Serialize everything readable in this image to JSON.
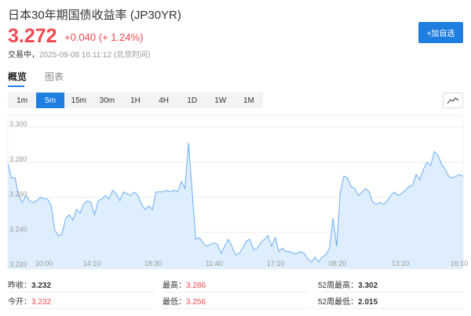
{
  "header": {
    "title": "日本30年期国债收益率 (JP30YR)",
    "price": "3.272",
    "change": "+0.040 (+ 1.24%)",
    "status_label": "交易中，",
    "timestamp": "2025-09-08 16:11:12 (北京时间)",
    "add_button": "+加自选"
  },
  "tabs": [
    {
      "label": "概览",
      "active": true
    },
    {
      "label": "图表",
      "active": false
    }
  ],
  "timeframes": [
    "1m",
    "5m",
    "15m",
    "30m",
    "1H",
    "4H",
    "1D",
    "1W",
    "1M"
  ],
  "active_timeframe": "5m",
  "colors": {
    "accent": "#1f7fe0",
    "up": "#f0484f",
    "line": "#6aaef5",
    "fill": "#dfeefc"
  },
  "chart_data": {
    "type": "area",
    "y_ticks": [
      "3.300",
      "3.280",
      "3.260",
      "3.240",
      "3.220"
    ],
    "ylim": [
      3.22,
      3.3
    ],
    "x_ticks": [
      "10:00",
      "14:10",
      "18:30",
      "11:40",
      "17:10",
      "08:20",
      "13:10",
      "16:10"
    ],
    "grid": true,
    "values": [
      3.279,
      3.271,
      3.271,
      3.261,
      3.257,
      3.261,
      3.258,
      3.257,
      3.258,
      3.26,
      3.259,
      3.259,
      3.255,
      3.241,
      3.238,
      3.239,
      3.248,
      3.25,
      3.247,
      3.253,
      3.251,
      3.256,
      3.258,
      3.257,
      3.25,
      3.258,
      3.259,
      3.261,
      3.259,
      3.264,
      3.262,
      3.258,
      3.263,
      3.262,
      3.261,
      3.263,
      3.261,
      3.256,
      3.253,
      3.255,
      3.253,
      3.263,
      3.263,
      3.263,
      3.264,
      3.263,
      3.264,
      3.263,
      3.269,
      3.265,
      3.291,
      3.263,
      3.236,
      3.237,
      3.234,
      3.232,
      3.233,
      3.234,
      3.233,
      3.228,
      3.232,
      3.236,
      3.232,
      3.227,
      3.228,
      3.231,
      3.235,
      3.236,
      3.23,
      3.231,
      3.234,
      3.236,
      3.238,
      3.232,
      3.237,
      3.229,
      3.231,
      3.229,
      3.229,
      3.228,
      3.228,
      3.229,
      3.228,
      3.225,
      3.223,
      3.226,
      3.223,
      3.226,
      3.227,
      3.231,
      3.248,
      3.232,
      3.263,
      3.272,
      3.271,
      3.266,
      3.265,
      3.261,
      3.263,
      3.265,
      3.263,
      3.257,
      3.256,
      3.257,
      3.256,
      3.258,
      3.261,
      3.263,
      3.261,
      3.262,
      3.264,
      3.266,
      3.267,
      3.273,
      3.27,
      3.276,
      3.28,
      3.278,
      3.286,
      3.284,
      3.279,
      3.276,
      3.272,
      3.271,
      3.272,
      3.273,
      3.272
    ]
  },
  "stats": [
    [
      {
        "label": "昨收：",
        "value": "3.232",
        "red": false
      },
      {
        "label": "最高：",
        "value": "3.286",
        "red": true
      },
      {
        "label": "52周最高：",
        "value": "3.302",
        "red": false
      }
    ],
    [
      {
        "label": "今开：",
        "value": "3.232",
        "red": true
      },
      {
        "label": "最低：",
        "value": "3.256",
        "red": true
      },
      {
        "label": "52周最低：",
        "value": "2.015",
        "red": false
      }
    ]
  ]
}
